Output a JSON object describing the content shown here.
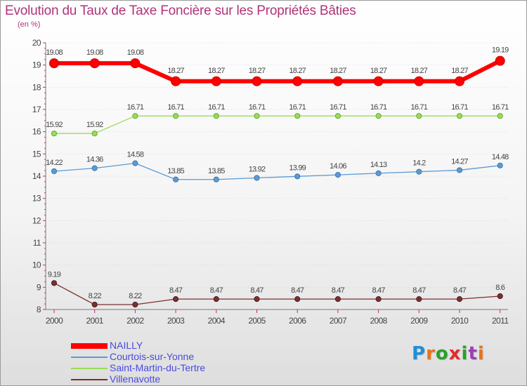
{
  "title": "Evolution du Taux de Taxe Foncière sur les Propriétés Bâties",
  "unit_label": "(en %)",
  "logo": {
    "letters": [
      "P",
      "r",
      "o",
      "x",
      "i",
      "t",
      "i"
    ],
    "colors": [
      "#1f8fd6",
      "#e8731c",
      "#2aa02a",
      "#e32a2a",
      "#2aa02a",
      "#9c3fb8",
      "#e8731c"
    ]
  },
  "chart_data": {
    "type": "line",
    "title": "Evolution du Taux de Taxe Foncière sur les Propriétés Bâties",
    "ylabel": "(en %)",
    "x": [
      "2000",
      "2001",
      "2002",
      "2003",
      "2004",
      "2005",
      "2006",
      "2007",
      "2008",
      "2009",
      "2010",
      "2011"
    ],
    "ylim": [
      8,
      20
    ],
    "yticks": [
      8,
      9,
      10,
      11,
      12,
      13,
      14,
      15,
      16,
      17,
      18,
      19,
      20
    ],
    "grid": "horizontal dotted",
    "legend": "bottom-left",
    "series": [
      {
        "name": "NAILLY",
        "color": "#ff0000",
        "values": [
          19.08,
          19.08,
          19.08,
          18.27,
          18.27,
          18.27,
          18.27,
          18.27,
          18.27,
          18.27,
          18.27,
          19.19
        ],
        "labels": [
          "19.08",
          "19.08",
          "19.08",
          "18.27",
          "18.27",
          "18.27",
          "18.27",
          "18.27",
          "18.27",
          "18.27",
          "18.27",
          "19.19"
        ]
      },
      {
        "name": "Courtois-sur-Yonne",
        "color": "#5b9bd5",
        "values": [
          14.22,
          14.36,
          14.58,
          13.85,
          13.85,
          13.92,
          13.99,
          14.06,
          14.13,
          14.2,
          14.27,
          14.48
        ],
        "labels": [
          "14.22",
          "14.36",
          "14.58",
          "13.85",
          "13.85",
          "13.92",
          "13.99",
          "14.06",
          "14.13",
          "14.2",
          "14.27",
          "14.48"
        ]
      },
      {
        "name": "Saint-Martin-du-Tertre",
        "color": "#99dd55",
        "values": [
          15.92,
          15.92,
          16.71,
          16.71,
          16.71,
          16.71,
          16.71,
          16.71,
          16.71,
          16.71,
          16.71,
          16.71
        ],
        "labels": [
          "15.92",
          "15.92",
          "16.71",
          "16.71",
          "16.71",
          "16.71",
          "16.71",
          "16.71",
          "16.71",
          "16.71",
          "16.71",
          "16.71"
        ]
      },
      {
        "name": "Villenavotte",
        "color": "#7a3030",
        "values": [
          9.19,
          8.22,
          8.22,
          8.47,
          8.47,
          8.47,
          8.47,
          8.47,
          8.47,
          8.47,
          8.47,
          8.6
        ],
        "labels": [
          "9.19",
          "8.22",
          "8.22",
          "8.47",
          "8.47",
          "8.47",
          "8.47",
          "8.47",
          "8.47",
          "8.47",
          "8.47",
          "8.6"
        ]
      }
    ]
  }
}
